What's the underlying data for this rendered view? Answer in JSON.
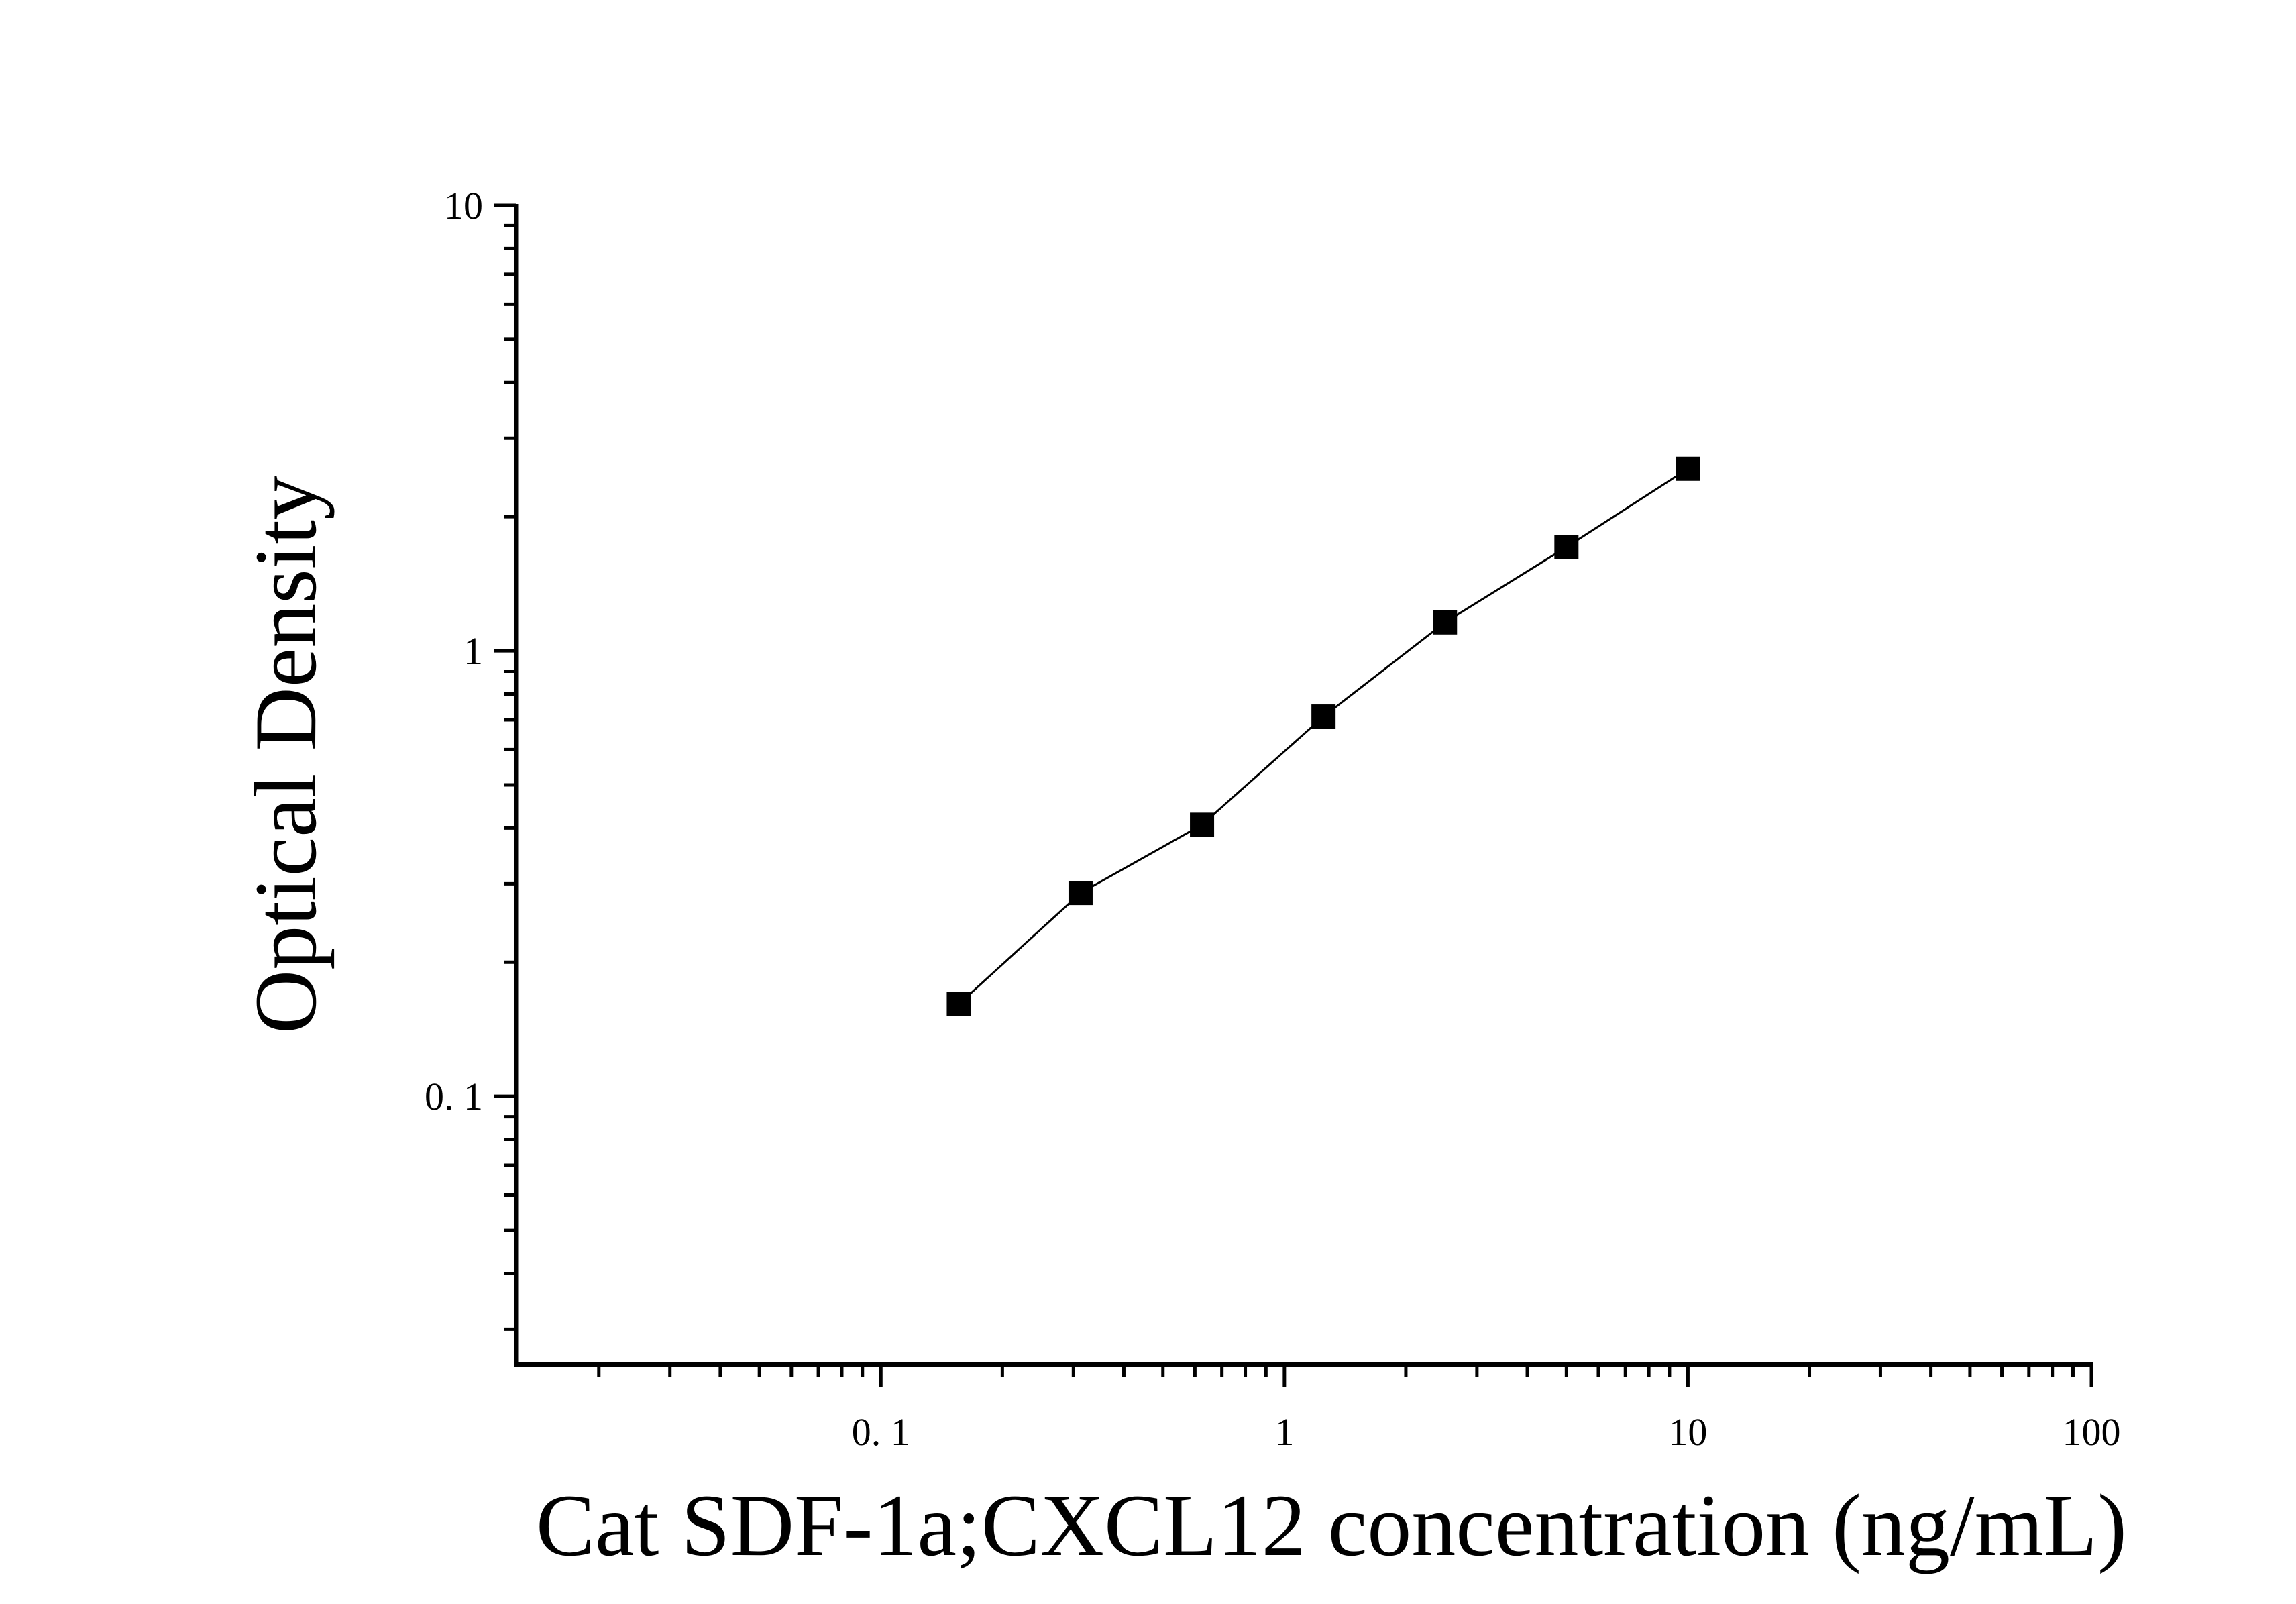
{
  "chart_data": {
    "type": "scatter",
    "title": "",
    "xlabel": "Cat SDF-1a;CXCL12 concentration (ng/mL)",
    "ylabel": "Optical Density",
    "xscale": "log",
    "yscale": "log",
    "xlim": [
      0.0125,
      100
    ],
    "ylim": [
      0.025,
      10
    ],
    "grid": false,
    "legend": "none",
    "x_ticks": [
      0.1,
      1,
      10,
      100
    ],
    "x_tick_labels": [
      "0. 1",
      "1",
      "10",
      "100"
    ],
    "y_ticks": [
      0.1,
      1,
      10
    ],
    "y_tick_labels": [
      "0. 1",
      "1",
      "10"
    ],
    "marker": "square",
    "marker_color": "#000000",
    "line_color": "#000000",
    "series": [
      {
        "x": [
          0.156,
          0.3125,
          0.625,
          1.25,
          2.5,
          5,
          10
        ],
        "y": [
          0.161,
          0.286,
          0.407,
          0.712,
          1.158,
          1.709,
          2.562
        ]
      }
    ]
  }
}
